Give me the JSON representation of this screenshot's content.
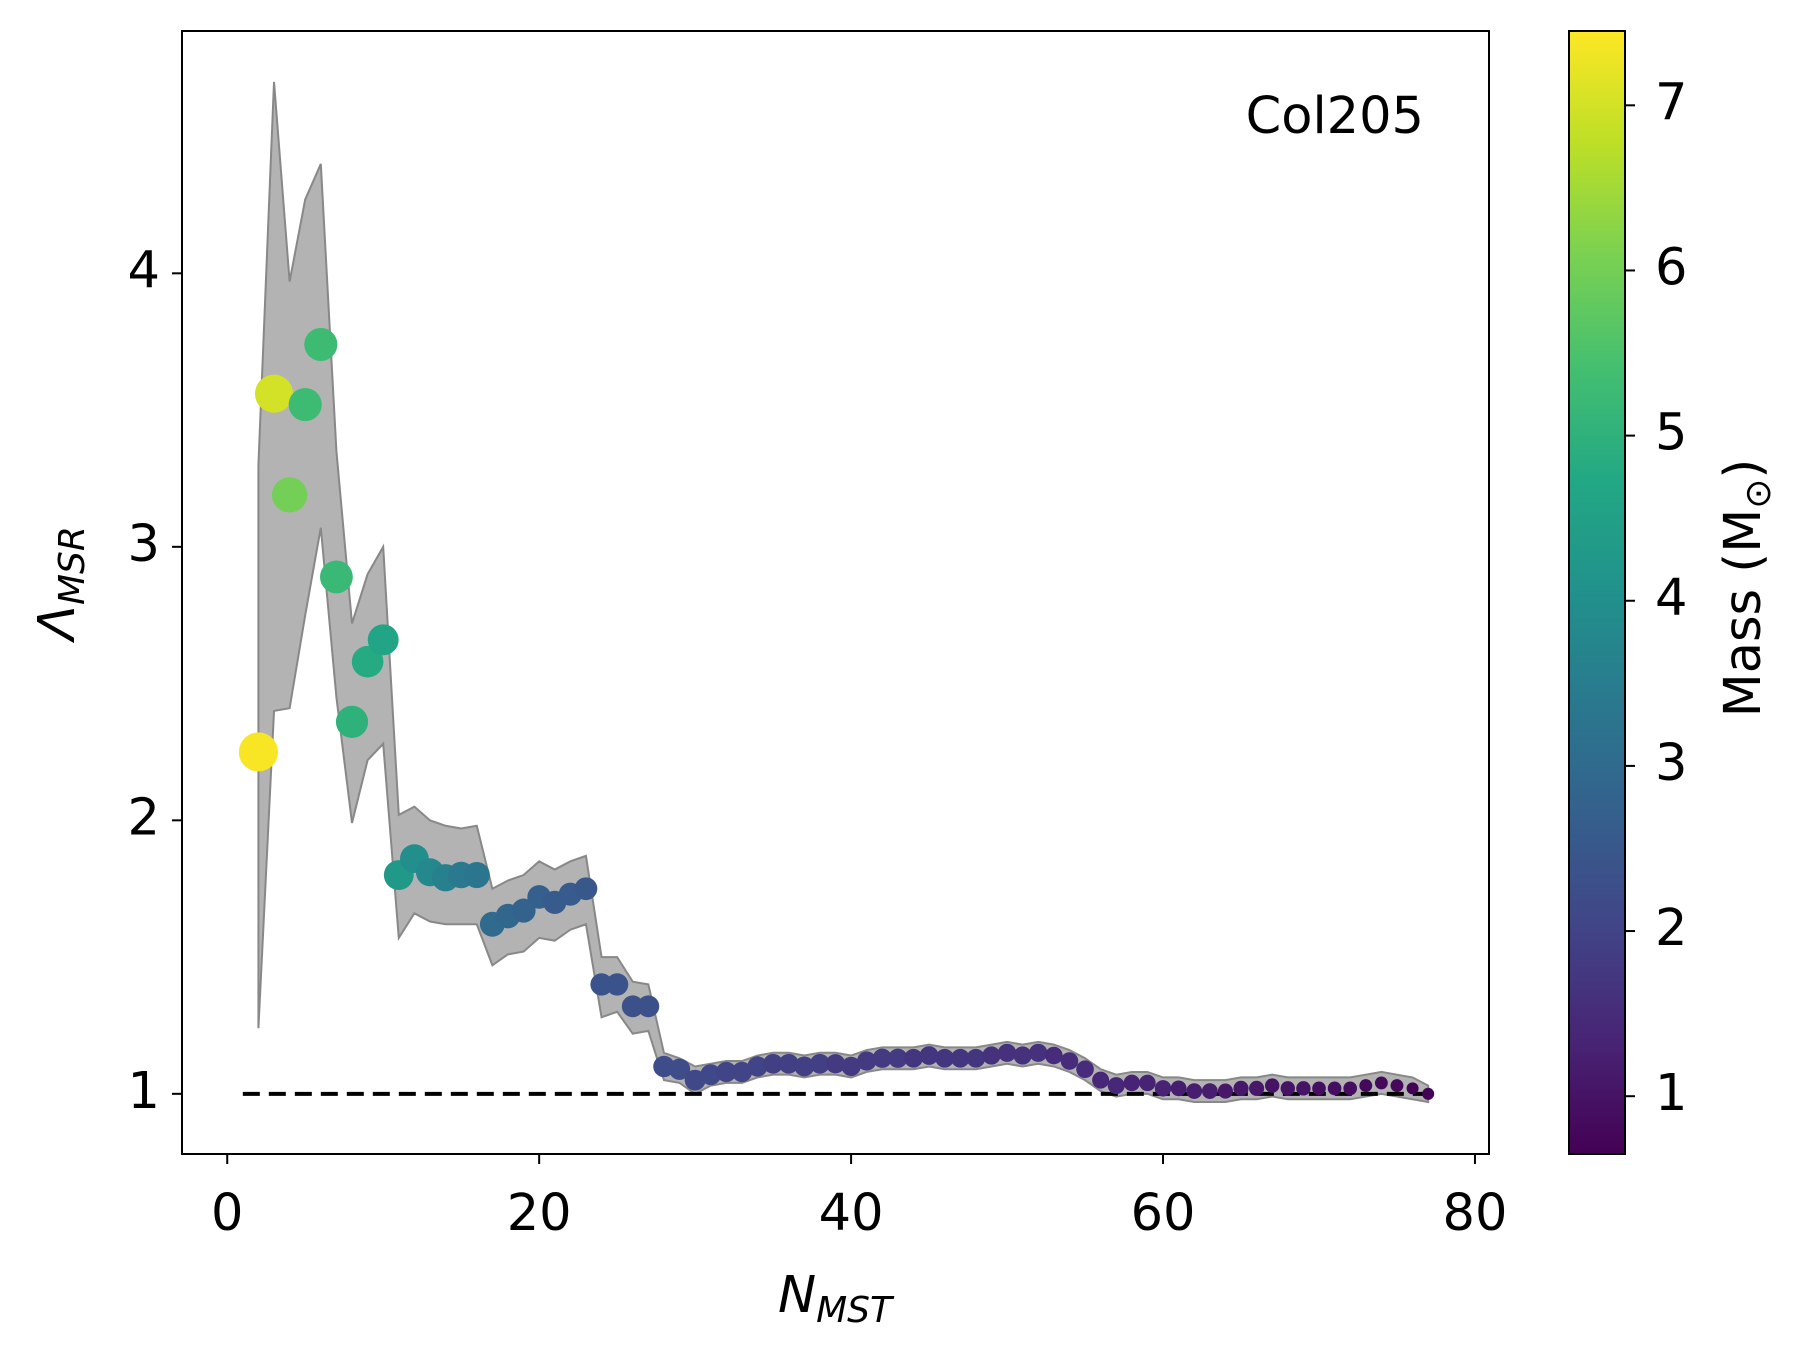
{
  "chart_data": {
    "type": "scatter",
    "annotation": "Col205",
    "x_label": {
      "symbol": "N",
      "subscript": "MST"
    },
    "y_label": {
      "symbol": "Λ",
      "subscript": "MSR"
    },
    "colorbar": {
      "label": {
        "text": "Mass (M",
        "subscript": "⊙",
        "suffix": ")"
      },
      "colormap": "viridis",
      "lim": [
        0.65,
        7.45
      ],
      "ticks": [
        1,
        2,
        3,
        4,
        5,
        6,
        7
      ]
    },
    "xlim": [
      -2.9,
      80.9
    ],
    "ylim": [
      0.78,
      4.886
    ],
    "xticks": [
      0,
      20,
      40,
      60,
      80
    ],
    "yticks": [
      1,
      2,
      3,
      4
    ],
    "reference_line": {
      "y": 1,
      "x": [
        1,
        77
      ],
      "color": "#000000"
    },
    "band_color": "#b3b3b3",
    "x": [
      2,
      3,
      4,
      5,
      6,
      7,
      8,
      9,
      10,
      11,
      12,
      13,
      14,
      15,
      16,
      17,
      18,
      19,
      20,
      21,
      22,
      23,
      24,
      25,
      26,
      27,
      28,
      29,
      30,
      31,
      32,
      33,
      34,
      35,
      36,
      37,
      38,
      39,
      40,
      41,
      42,
      43,
      44,
      45,
      46,
      47,
      48,
      49,
      50,
      51,
      52,
      53,
      54,
      55,
      56,
      57,
      58,
      59,
      60,
      61,
      62,
      63,
      64,
      65,
      66,
      67,
      68,
      69,
      70,
      71,
      72,
      73,
      74,
      75,
      76,
      77
    ],
    "y": [
      2.25,
      3.56,
      3.19,
      3.52,
      3.74,
      2.89,
      2.36,
      2.58,
      2.66,
      1.8,
      1.86,
      1.81,
      1.79,
      1.8,
      1.8,
      1.62,
      1.65,
      1.67,
      1.72,
      1.7,
      1.73,
      1.75,
      1.4,
      1.4,
      1.32,
      1.32,
      1.1,
      1.09,
      1.05,
      1.07,
      1.08,
      1.08,
      1.1,
      1.11,
      1.11,
      1.1,
      1.11,
      1.11,
      1.1,
      1.12,
      1.13,
      1.13,
      1.13,
      1.14,
      1.13,
      1.13,
      1.13,
      1.14,
      1.15,
      1.14,
      1.15,
      1.14,
      1.12,
      1.09,
      1.05,
      1.03,
      1.04,
      1.04,
      1.02,
      1.02,
      1.01,
      1.01,
      1.01,
      1.02,
      1.02,
      1.03,
      1.02,
      1.02,
      1.02,
      1.02,
      1.02,
      1.03,
      1.04,
      1.03,
      1.02,
      1.0
    ],
    "upper": [
      3.3,
      4.7,
      3.97,
      4.27,
      4.4,
      3.35,
      2.72,
      2.9,
      3.0,
      2.02,
      2.05,
      2.0,
      1.98,
      1.97,
      1.98,
      1.75,
      1.78,
      1.8,
      1.85,
      1.82,
      1.85,
      1.87,
      1.5,
      1.5,
      1.41,
      1.4,
      1.15,
      1.13,
      1.1,
      1.11,
      1.12,
      1.12,
      1.14,
      1.15,
      1.15,
      1.14,
      1.15,
      1.15,
      1.14,
      1.16,
      1.17,
      1.17,
      1.17,
      1.18,
      1.17,
      1.17,
      1.17,
      1.18,
      1.19,
      1.18,
      1.19,
      1.18,
      1.16,
      1.13,
      1.09,
      1.07,
      1.08,
      1.08,
      1.06,
      1.06,
      1.05,
      1.05,
      1.05,
      1.06,
      1.06,
      1.07,
      1.06,
      1.06,
      1.06,
      1.06,
      1.06,
      1.07,
      1.08,
      1.07,
      1.06,
      1.03
    ],
    "lower": [
      1.24,
      2.4,
      2.41,
      2.75,
      3.07,
      2.45,
      1.99,
      2.22,
      2.28,
      1.57,
      1.66,
      1.63,
      1.62,
      1.62,
      1.62,
      1.47,
      1.51,
      1.52,
      1.57,
      1.56,
      1.6,
      1.62,
      1.28,
      1.3,
      1.22,
      1.23,
      1.05,
      1.04,
      1.0,
      1.03,
      1.04,
      1.04,
      1.06,
      1.07,
      1.07,
      1.06,
      1.07,
      1.07,
      1.06,
      1.08,
      1.09,
      1.09,
      1.09,
      1.1,
      1.09,
      1.09,
      1.09,
      1.1,
      1.11,
      1.1,
      1.11,
      1.1,
      1.08,
      1.05,
      1.01,
      0.99,
      1.0,
      1.0,
      0.98,
      0.98,
      0.97,
      0.97,
      0.97,
      0.98,
      0.98,
      0.99,
      0.98,
      0.98,
      0.98,
      0.98,
      0.98,
      0.99,
      1.0,
      0.99,
      0.98,
      0.97
    ],
    "mass": [
      7.4,
      7.0,
      6.0,
      5.3,
      5.3,
      5.2,
      5.0,
      4.8,
      4.6,
      4.3,
      4.0,
      3.8,
      3.6,
      3.4,
      3.3,
      3.0,
      2.9,
      2.8,
      2.7,
      2.6,
      2.6,
      2.5,
      2.4,
      2.4,
      2.3,
      2.3,
      2.2,
      2.2,
      2.1,
      2.1,
      2.0,
      2.0,
      2.0,
      1.9,
      1.9,
      1.9,
      1.9,
      1.8,
      1.8,
      1.8,
      1.8,
      1.8,
      1.7,
      1.7,
      1.7,
      1.7,
      1.7,
      1.6,
      1.6,
      1.6,
      1.6,
      1.5,
      1.5,
      1.5,
      1.4,
      1.4,
      1.3,
      1.3,
      1.3,
      1.2,
      1.2,
      1.2,
      1.1,
      1.1,
      1.1,
      1.0,
      1.0,
      1.0,
      0.9,
      0.9,
      0.9,
      0.8,
      0.8,
      0.8,
      0.7,
      0.7
    ]
  }
}
